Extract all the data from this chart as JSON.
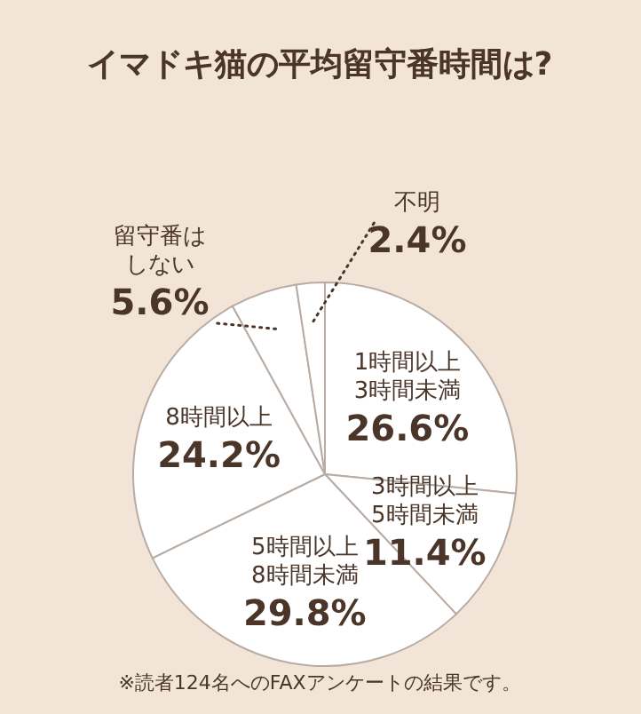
{
  "chart_data": {
    "type": "pie",
    "title": "イマドキ猫の平均留守番時間は?",
    "categories": [
      "1時間以上3時間未満",
      "3時間以上5時間未満",
      "5時間以上8時間未満",
      "8時間以上",
      "留守番はしない",
      "不明"
    ],
    "values": [
      26.6,
      11.4,
      29.8,
      24.2,
      5.6,
      2.4
    ],
    "value_labels": [
      "26.6%",
      "11.4%",
      "29.8%",
      "24.2%",
      "5.6%",
      "2.4%"
    ],
    "colors": [
      "#ffffff",
      "#ffffff",
      "#ffffff",
      "#ffffff",
      "#ffffff",
      "#ffffff"
    ],
    "annotations": [
      "※読者124名へのFAXアンケートの結果です。"
    ]
  }
}
